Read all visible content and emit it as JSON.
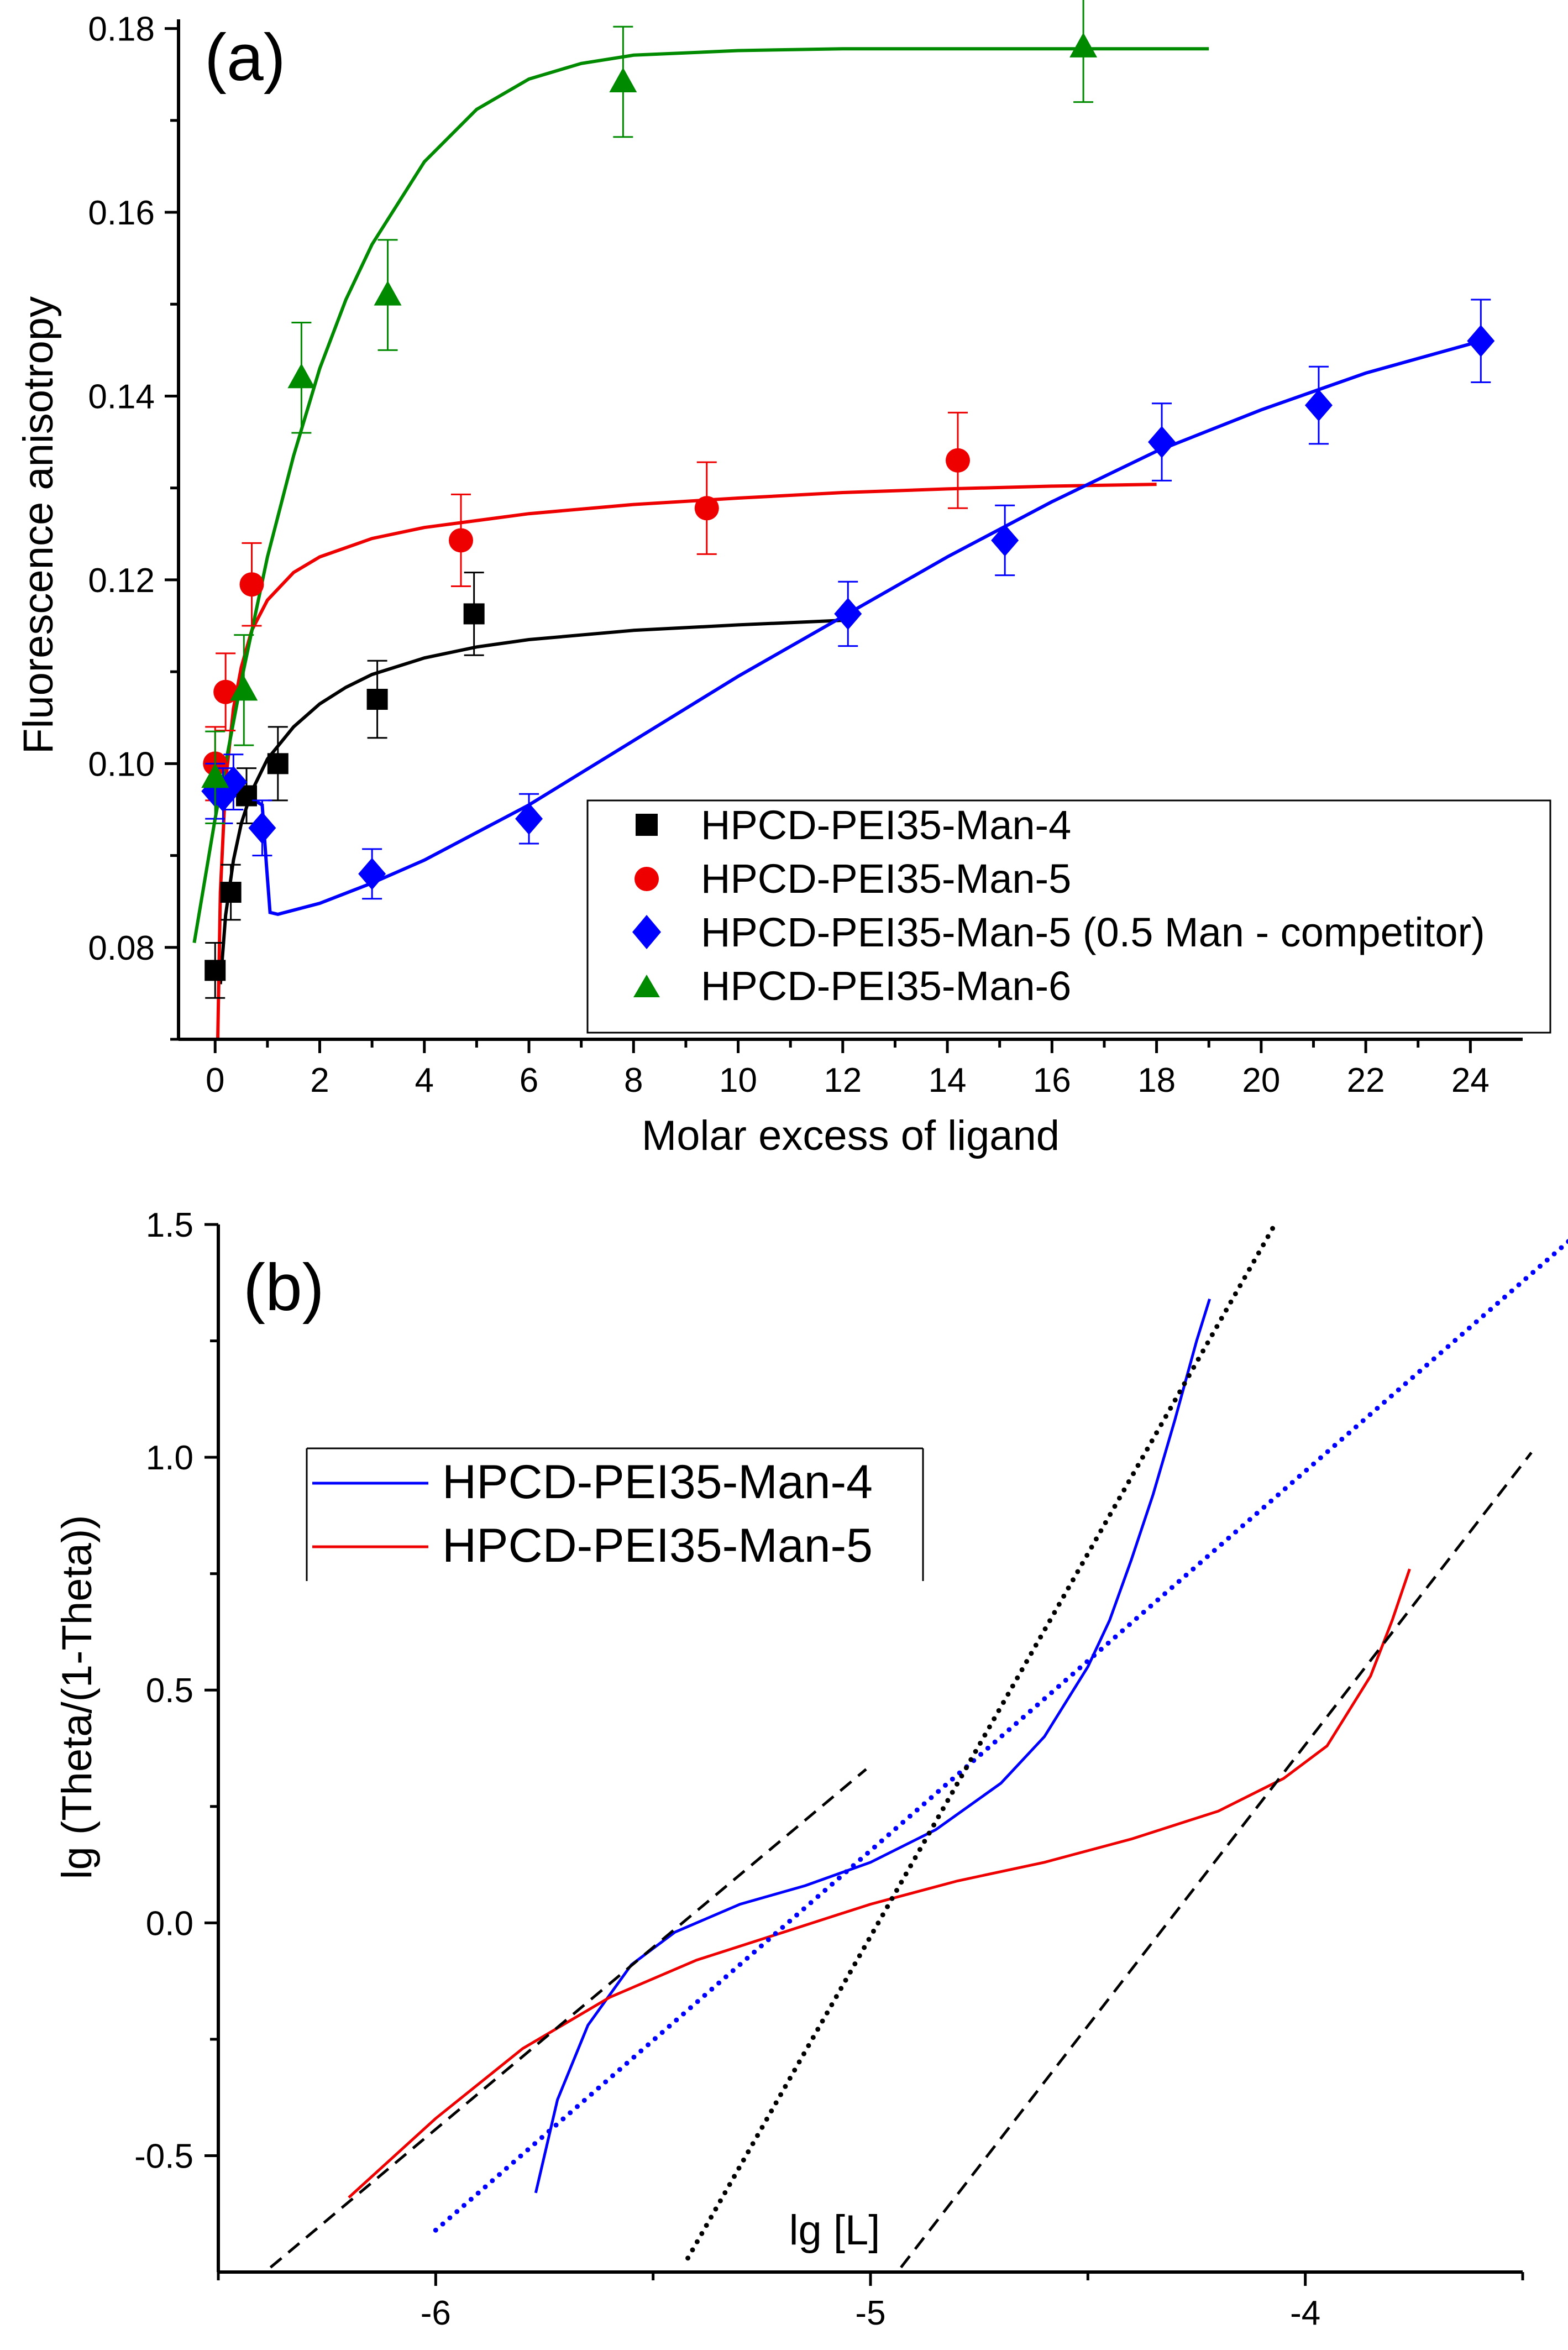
{
  "colors": {
    "black": "#000000",
    "red": "#ee0000",
    "blue": "#0000ff",
    "green": "#008a00"
  },
  "chart_data": [
    {
      "id": "a",
      "type": "scatter",
      "panel_label": "(a)",
      "xlabel": "Molar excess of ligand",
      "ylabel": "Fluorescence anisotropy",
      "xlim": [
        -0.7,
        25
      ],
      "ylim": [
        0.07,
        0.181
      ],
      "x_ticks": [
        0,
        2,
        4,
        6,
        8,
        10,
        12,
        14,
        16,
        18,
        20,
        22,
        24
      ],
      "x_tick_labels": [
        "0",
        "2",
        "4",
        "6",
        "8",
        "10",
        "12",
        "14",
        "16",
        "18",
        "20",
        "22",
        "24"
      ],
      "y_ticks": [
        0.08,
        0.1,
        0.12,
        0.14,
        0.16,
        0.18
      ],
      "y_tick_labels": [
        "0.08",
        "0.10",
        "0.12",
        "0.14",
        "0.16",
        "0.18"
      ],
      "legend_position": "lower-right",
      "series": [
        {
          "name": "HPCD-PEI35-Man-4",
          "color": "#000000",
          "marker": "square",
          "x": [
            0,
            0.3,
            0.6,
            1.2,
            3.1,
            4.95
          ],
          "y": [
            0.0775,
            0.086,
            0.0965,
            0.1,
            0.107,
            0.1163
          ],
          "err": [
            0.003,
            0.003,
            0.003,
            0.004,
            0.0042,
            0.0045
          ],
          "fit": {
            "x": [
              0.1,
              0.2,
              0.35,
              0.5,
              0.7,
              1.0,
              1.5,
              2.0,
              2.5,
              3.0,
              4.0,
              5.0,
              6.0,
              8.0,
              10.0,
              12.0
            ],
            "y": [
              0.076,
              0.0835,
              0.0895,
              0.0935,
              0.097,
              0.1005,
              0.104,
              0.1065,
              0.1083,
              0.1097,
              0.1115,
              0.1127,
              0.1135,
              0.1145,
              0.1151,
              0.1156
            ]
          }
        },
        {
          "name": "HPCD-PEI35-Man-5",
          "color": "#ee0000",
          "marker": "circle",
          "x": [
            0,
            0.2,
            0.7,
            4.7,
            9.4,
            14.2
          ],
          "y": [
            0.1,
            0.1078,
            0.1195,
            0.1243,
            0.1278,
            0.133
          ],
          "err": [
            0.004,
            0.0042,
            0.0045,
            0.005,
            0.005,
            0.0052
          ],
          "fit": {
            "x": [
              0.05,
              0.1,
              0.2,
              0.35,
              0.5,
              0.7,
              1.0,
              1.5,
              2.0,
              3.0,
              4.0,
              6.0,
              8.0,
              10.0,
              12.0,
              14.0,
              16.0,
              18.0
            ],
            "y": [
              0.07,
              0.086,
              0.098,
              0.106,
              0.1105,
              0.1145,
              0.1178,
              0.1208,
              0.1225,
              0.1245,
              0.1257,
              0.1272,
              0.1282,
              0.1289,
              0.1295,
              0.1299,
              0.1302,
              0.1304
            ]
          }
        },
        {
          "name": "HPCD-PEI35-Man-5 (0.5 Man - competitor)",
          "color": "#0000ff",
          "marker": "diamond",
          "x": [
            0,
            0.15,
            0.35,
            0.9,
            3.0,
            6.0,
            12.1,
            15.1,
            18.1,
            21.1,
            24.2
          ],
          "y": [
            0.097,
            0.0965,
            0.098,
            0.093,
            0.088,
            0.094,
            0.1163,
            0.1243,
            0.135,
            0.139,
            0.146
          ],
          "err": [
            0.003,
            0.003,
            0.003,
            0.003,
            0.0027,
            0.0027,
            0.0035,
            0.0038,
            0.0042,
            0.0042,
            0.0045
          ],
          "fit": {
            "x": [
              0,
              0.3,
              0.6,
              0.9,
              0.98,
              1.05,
              1.2,
              2.0,
              3.0,
              4.0,
              6.0,
              8.0,
              10.0,
              12.0,
              14.0,
              16.0,
              18.0,
              20.0,
              22.0,
              24.2
            ],
            "y": [
              0.097,
              0.097,
              0.0965,
              0.0955,
              0.089,
              0.0838,
              0.0836,
              0.0848,
              0.087,
              0.0895,
              0.0955,
              0.1025,
              0.1095,
              0.116,
              0.1225,
              0.1285,
              0.134,
              0.1385,
              0.1425,
              0.146
            ]
          }
        },
        {
          "name": "HPCD-PEI35-Man-6",
          "color": "#008a00",
          "marker": "triangle",
          "x": [
            0,
            0.55,
            1.65,
            3.3,
            7.8,
            16.6
          ],
          "y": [
            0.0985,
            0.108,
            0.142,
            0.151,
            0.1742,
            0.178
          ],
          "err": [
            0.005,
            0.006,
            0.006,
            0.006,
            0.006,
            0.006
          ],
          "fit": {
            "x": [
              -0.4,
              0.0,
              0.5,
              1.0,
              1.5,
              2.0,
              2.5,
              3.0,
              4.0,
              5.0,
              6.0,
              7.0,
              8.0,
              10.0,
              12.0,
              14.0,
              16.0,
              19.0
            ],
            "y": [
              0.0805,
              0.094,
              0.109,
              0.1225,
              0.1335,
              0.143,
              0.1505,
              0.1565,
              0.1655,
              0.1712,
              0.1745,
              0.1762,
              0.1771,
              0.1776,
              0.1778,
              0.1778,
              0.1778,
              0.1778
            ]
          }
        }
      ]
    },
    {
      "id": "b",
      "type": "line",
      "panel_label": "(b)",
      "xlabel": "lg [L]",
      "ylabel": "lg (Theta/(1-Theta))",
      "xlim": [
        -6.5,
        -3.5
      ],
      "ylim": [
        -0.75,
        1.5
      ],
      "x_ticks": [
        -6,
        -5,
        -4
      ],
      "x_tick_labels": [
        "-6",
        "-5",
        "-4"
      ],
      "y_ticks": [
        -0.5,
        0.0,
        0.5,
        1.0,
        1.5
      ],
      "y_tick_labels": [
        "-0.5",
        "0.0",
        "0.5",
        "1.0",
        "1.5"
      ],
      "legend_position": "top-left",
      "series": [
        {
          "name": "HPCD-PEI35-Man-4",
          "color": "#0000ff",
          "style": "solid",
          "legend": true,
          "x": [
            -5.77,
            -5.72,
            -5.65,
            -5.55,
            -5.45,
            -5.3,
            -5.15,
            -5.0,
            -4.85,
            -4.7,
            -4.6,
            -4.5,
            -4.45,
            -4.4,
            -4.35,
            -4.3,
            -4.25,
            -4.22
          ],
          "y": [
            -0.58,
            -0.38,
            -0.22,
            -0.09,
            -0.02,
            0.04,
            0.08,
            0.13,
            0.2,
            0.3,
            0.4,
            0.55,
            0.65,
            0.78,
            0.92,
            1.08,
            1.25,
            1.34
          ]
        },
        {
          "name": "HPCD-PEI35-Man-5",
          "color": "#ee0000",
          "style": "solid",
          "legend": true,
          "x": [
            -6.2,
            -6.0,
            -5.8,
            -5.6,
            -5.4,
            -5.2,
            -5.0,
            -4.8,
            -4.6,
            -4.4,
            -4.2,
            -4.05,
            -3.95,
            -3.85,
            -3.8,
            -3.76
          ],
          "y": [
            -0.59,
            -0.42,
            -0.27,
            -0.16,
            -0.08,
            -0.02,
            0.04,
            0.09,
            0.13,
            0.18,
            0.24,
            0.31,
            0.38,
            0.53,
            0.65,
            0.76
          ]
        },
        {
          "name": "fit-dash-upper",
          "color": "#000000",
          "style": "dashed",
          "legend": false,
          "x": [
            -6.38,
            -5.01
          ],
          "y": [
            -0.74,
            0.33
          ]
        },
        {
          "name": "fit-dash-lower",
          "color": "#000000",
          "style": "dashed",
          "legend": false,
          "x": [
            -4.93,
            -3.48
          ],
          "y": [
            -0.74,
            1.01
          ]
        },
        {
          "name": "fit-dot-blue",
          "color": "#0000ff",
          "style": "dotted",
          "legend": false,
          "x": [
            -6.0,
            -3.35
          ],
          "y": [
            -0.66,
            1.5
          ]
        },
        {
          "name": "fit-dot-black",
          "color": "#000000",
          "style": "dotted",
          "legend": false,
          "x": [
            -5.42,
            -4.07
          ],
          "y": [
            -0.72,
            1.5
          ]
        }
      ]
    }
  ]
}
